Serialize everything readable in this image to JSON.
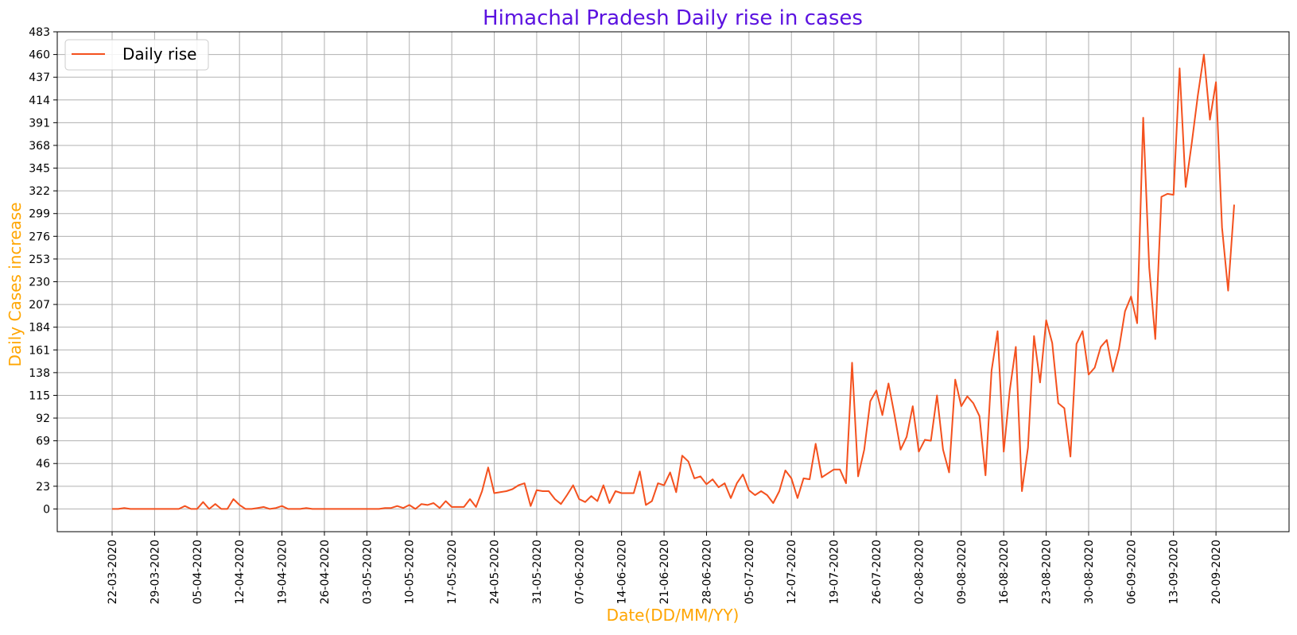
{
  "chart_data": {
    "type": "line",
    "title": "Himachal Pradesh Daily rise in cases",
    "xlabel": "Date(DD/MM/YY)",
    "ylabel": "Daily Cases increase",
    "ylim": [
      -23,
      483
    ],
    "y_ticks": [
      0,
      23,
      46,
      69,
      92,
      115,
      138,
      161,
      184,
      207,
      230,
      253,
      276,
      299,
      322,
      345,
      368,
      391,
      414,
      437,
      460,
      483
    ],
    "x_ticks": [
      "22-03-2020",
      "29-03-2020",
      "05-04-2020",
      "12-04-2020",
      "19-04-2020",
      "26-04-2020",
      "03-05-2020",
      "10-05-2020",
      "17-05-2020",
      "24-05-2020",
      "31-05-2020",
      "07-06-2020",
      "14-06-2020",
      "21-06-2020",
      "28-06-2020",
      "05-07-2020",
      "12-07-2020",
      "19-07-2020",
      "26-07-2020",
      "02-08-2020",
      "09-08-2020",
      "16-08-2020",
      "23-08-2020",
      "30-08-2020",
      "06-09-2020",
      "13-09-2020",
      "20-09-2020"
    ],
    "grid": true,
    "legend_position": "top-left",
    "series": [
      {
        "name": "Daily rise",
        "color": "#f4511e",
        "start_date": "22-03-2020",
        "values": [
          0,
          0,
          1,
          0,
          0,
          0,
          0,
          0,
          0,
          0,
          0,
          0,
          3,
          0,
          0,
          7,
          0,
          5,
          0,
          0,
          10,
          4,
          0,
          0,
          1,
          2,
          0,
          1,
          3,
          0,
          0,
          0,
          1,
          0,
          0,
          0,
          0,
          0,
          0,
          0,
          0,
          0,
          0,
          0,
          0,
          1,
          1,
          3,
          1,
          4,
          0,
          5,
          4,
          6,
          1,
          8,
          2,
          2,
          2,
          10,
          2,
          18,
          42,
          16,
          17,
          18,
          20,
          24,
          26,
          3,
          19,
          18,
          18,
          10,
          5,
          14,
          24,
          10,
          7,
          13,
          8,
          24,
          6,
          18,
          16,
          16,
          16,
          38,
          4,
          8,
          26,
          24,
          37,
          17,
          54,
          48,
          31,
          33,
          25,
          30,
          22,
          26,
          11,
          26,
          35,
          19,
          14,
          18,
          14,
          6,
          18,
          39,
          31,
          11,
          31,
          30,
          66,
          32,
          36,
          40,
          40,
          26,
          148,
          33,
          60,
          109,
          120,
          95,
          127,
          95,
          60,
          73,
          104,
          58,
          70,
          69,
          115,
          60,
          37,
          131,
          104,
          114,
          107,
          94,
          34,
          140,
          180,
          58,
          120,
          164,
          18,
          62,
          175,
          128,
          191,
          168,
          107,
          102,
          53,
          167,
          180,
          136,
          143,
          164,
          171,
          139,
          162,
          200,
          215,
          188,
          396,
          244,
          172,
          316,
          319,
          318,
          446,
          326,
          370,
          418,
          460,
          394,
          432,
          285,
          221,
          308
        ]
      }
    ]
  }
}
